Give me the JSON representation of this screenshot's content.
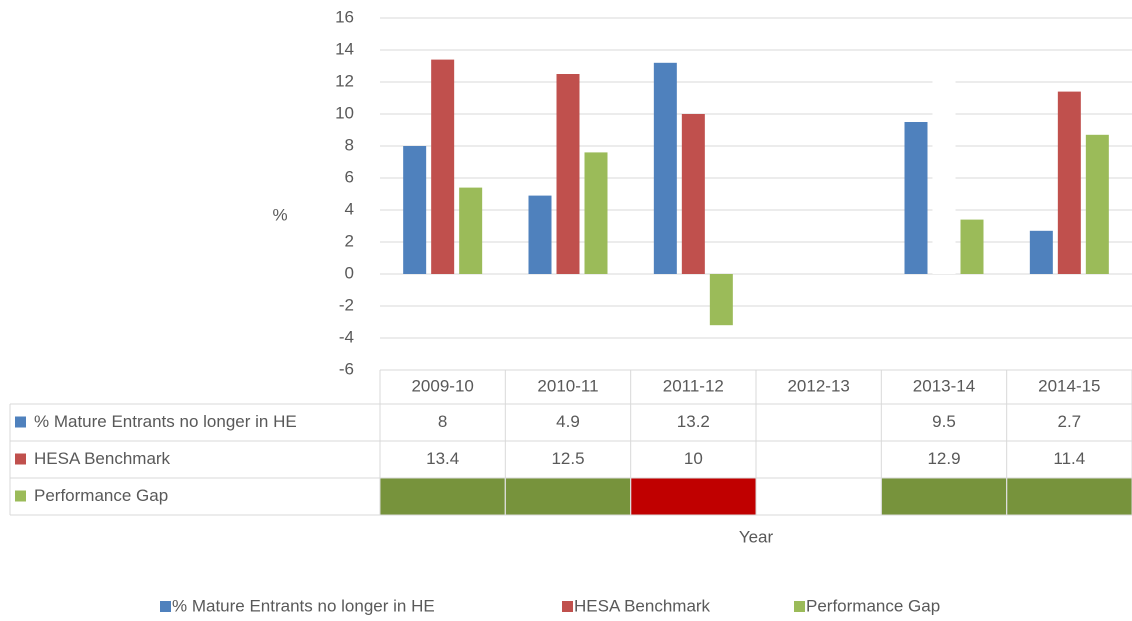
{
  "chart_data": {
    "type": "bar",
    "ylabel": "%",
    "xlabel": "Year",
    "categories": [
      "2009-10",
      "2010-11",
      "2011-12",
      "2012-13",
      "2013-14",
      "2014-15"
    ],
    "series": [
      {
        "name": "% Mature Entrants no longer in HE",
        "color": "#4f81bd",
        "values": [
          8,
          4.9,
          13.2,
          null,
          9.5,
          2.7
        ],
        "in_table": true
      },
      {
        "name": "HESA Benchmark",
        "color": "#c0504d",
        "values": [
          13.4,
          12.5,
          10,
          null,
          12.9,
          11.4
        ],
        "point_colors": [
          "#c0504d",
          "#c0504d",
          "#c0504d",
          "#c0504d",
          "#ffffff",
          "#c0504d"
        ],
        "in_table": true
      },
      {
        "name": "Performance Gap",
        "color": "#9bbb59",
        "values": [
          5.4,
          7.6,
          -3.2,
          null,
          3.4,
          8.7
        ],
        "in_table": false,
        "table_colors": {
          "positive": "#77933c",
          "negative": "#c00000"
        }
      }
    ],
    "ylim": [
      -6,
      16
    ],
    "yticks": [
      -6,
      -4,
      -2,
      0,
      2,
      4,
      6,
      8,
      10,
      12,
      14,
      16
    ],
    "grid": true,
    "legend": "bottom"
  }
}
